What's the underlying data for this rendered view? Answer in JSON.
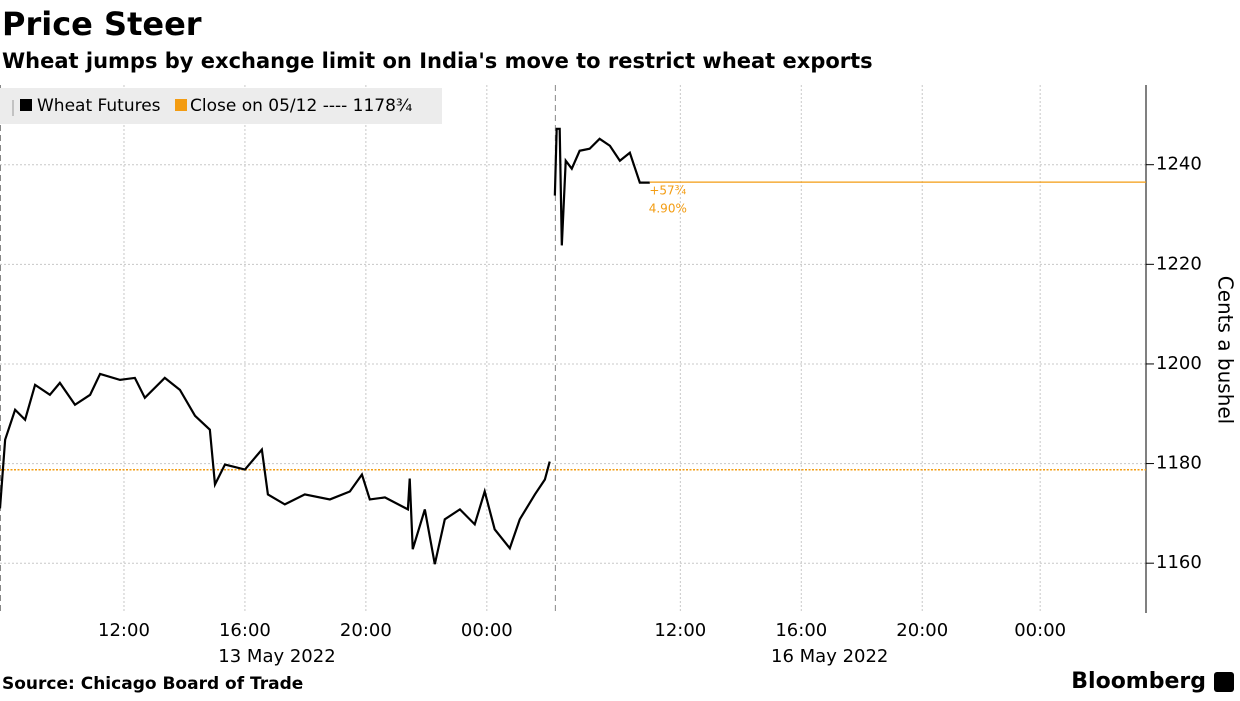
{
  "chart_data": {
    "type": "line",
    "title": "Price Steer",
    "subtitle": "Wheat jumps by exchange limit on India's move to restrict wheat exports",
    "y_label": "Cents a bushel",
    "source": "Source: Chicago Board of Trade",
    "brand": "Bloomberg",
    "x": [
      0,
      0.17,
      0.5,
      0.83,
      1.16,
      1.65,
      1.98,
      2.48,
      2.98,
      3.31,
      3.97,
      4.46,
      4.79,
      5.45,
      5.95,
      6.45,
      6.94,
      7.11,
      7.44,
      8.1,
      8.66,
      8.86,
      9.42,
      10.08,
      10.91,
      11.57,
      11.97,
      12.23,
      12.73,
      13.49,
      13.55,
      13.65,
      14.05,
      14.38,
      14.71,
      15.21,
      15.7,
      16.03,
      16.36,
      16.86,
      17.19,
      17.69,
      18.02,
      18.18,
      18.26,
      18.35,
      18.41,
      18.51,
      18.58,
      18.71,
      18.91,
      19.17,
      19.5,
      19.83,
      20.17,
      20.5,
      20.83,
      21.16,
      21.49
    ],
    "series": [
      {
        "name": "Wheat Futures",
        "color": "#000000",
        "values": [
          1171,
          1184.8,
          1190.8,
          1188.8,
          1195.8,
          1193.8,
          1196.2,
          1191.8,
          1193.8,
          1198,
          1196.8,
          1197.2,
          1193.2,
          1197.2,
          1194.8,
          1189.6,
          1186.8,
          1175.8,
          1179.8,
          1178.8,
          1182.8,
          1173.8,
          1171.8,
          1173.8,
          1172.8,
          1174.4,
          1177.8,
          1172.8,
          1173.2,
          1170.8,
          1177,
          1162.8,
          1170.8,
          1159.8,
          1168.8,
          1170.8,
          1167.8,
          1174.4,
          1166.8,
          1163,
          1168.8,
          1173.8,
          1176.8,
          1180.4,
          null,
          1233.8,
          1247.2,
          1247.2,
          1223.8,
          1240.8,
          1239.2,
          1242.8,
          1243.2,
          1245.2,
          1243.8,
          1240.8,
          1242.4,
          1236.4,
          1236.4
        ]
      }
    ],
    "reference_line": {
      "name": "Close on 05/12 ---- 1178¾",
      "value": 1178.75,
      "color": "#f39c12"
    },
    "last_price": 1236.5,
    "change_labels": [
      {
        "value": 57.75,
        "label": "+57¾"
      },
      {
        "value": 4.9,
        "label": "4.90%"
      }
    ],
    "session_breaks": [
      0,
      18.35
    ],
    "xlim": [
      0,
      37.9
    ],
    "xticks": [
      {
        "value": 4.1,
        "label": "12:00"
      },
      {
        "value": 8.1,
        "label": "16:00"
      },
      {
        "value": 12.1,
        "label": "20:00"
      },
      {
        "value": 16.1,
        "label": "00:00"
      },
      {
        "value": 22.5,
        "label": "12:00"
      },
      {
        "value": 26.5,
        "label": "16:00"
      },
      {
        "value": 30.5,
        "label": "20:00"
      },
      {
        "value": 34.4,
        "label": "00:00"
      }
    ],
    "date_labels": [
      {
        "value": 9.16,
        "label": "13 May 2022"
      },
      {
        "value": 27.44,
        "label": "16 May 2022"
      }
    ],
    "ylim": [
      1150,
      1256
    ],
    "yticks": [
      1160,
      1180,
      1200,
      1220,
      1240
    ],
    "grid": true
  }
}
